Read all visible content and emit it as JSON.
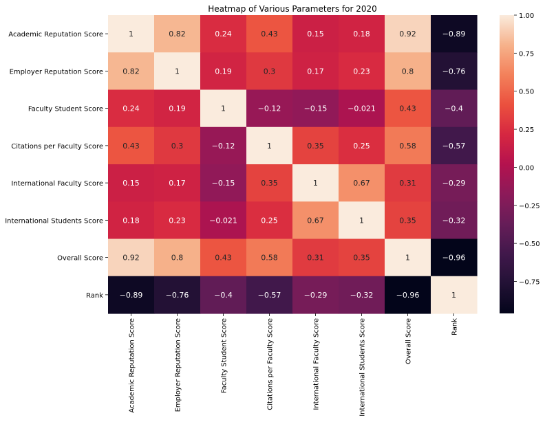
{
  "chart_data": {
    "type": "heatmap",
    "title": "Heatmap of Various Parameters for 2020",
    "rows": [
      "Academic Reputation Score",
      "Employer Reputation Score",
      "Faculty Student Score",
      "Citations per Faculty Score",
      "International Faculty Score",
      "International Students Score",
      "Overall Score",
      "Rank"
    ],
    "columns": [
      "Academic Reputation Score",
      "Employer Reputation Score",
      "Faculty Student Score",
      "Citations per Faculty Score",
      "International Faculty Score",
      "International Students Score",
      "Overall Score",
      "Rank"
    ],
    "values": [
      [
        1,
        0.82,
        0.24,
        0.43,
        0.15,
        0.18,
        0.92,
        -0.89
      ],
      [
        0.82,
        1,
        0.19,
        0.3,
        0.17,
        0.23,
        0.8,
        -0.76
      ],
      [
        0.24,
        0.19,
        1,
        -0.12,
        -0.15,
        -0.021,
        0.43,
        -0.4
      ],
      [
        0.43,
        0.3,
        -0.12,
        1,
        0.35,
        0.25,
        0.58,
        -0.57
      ],
      [
        0.15,
        0.17,
        -0.15,
        0.35,
        1,
        0.67,
        0.31,
        -0.29
      ],
      [
        0.18,
        0.23,
        -0.021,
        0.25,
        0.67,
        1,
        0.35,
        -0.32
      ],
      [
        0.92,
        0.8,
        0.43,
        0.58,
        0.31,
        0.35,
        1,
        -0.96
      ],
      [
        -0.89,
        -0.76,
        -0.4,
        -0.57,
        -0.29,
        -0.32,
        -0.96,
        1
      ]
    ],
    "colorbar": {
      "min": -0.96,
      "max": 1.0,
      "ticks": [
        1.0,
        0.75,
        0.5,
        0.25,
        0.0,
        -0.25,
        -0.5,
        -0.75
      ],
      "tick_labels": [
        "1.00",
        "0.75",
        "0.50",
        "0.25",
        "0.00",
        "−0.25",
        "−0.50",
        "−0.75"
      ]
    },
    "colormap": "rocket",
    "annotations": true,
    "grid": false
  }
}
